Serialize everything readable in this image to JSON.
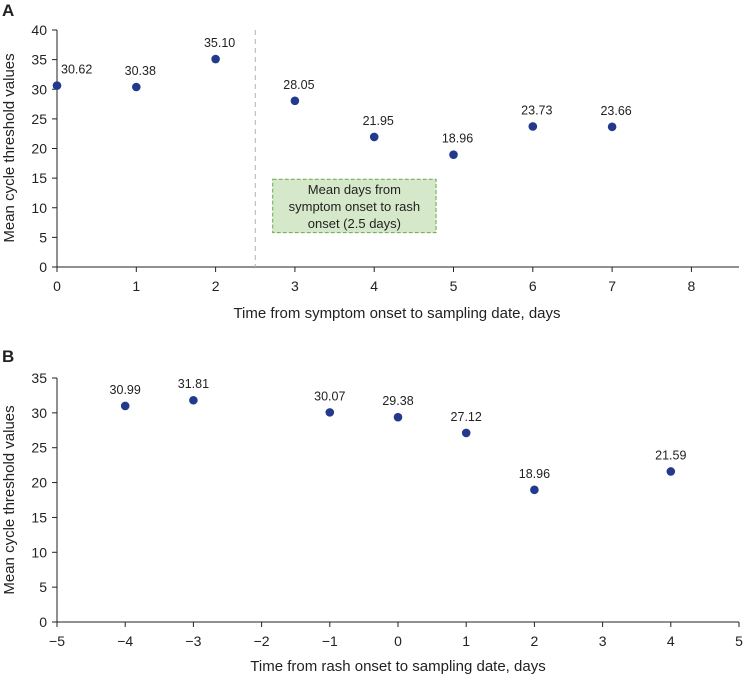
{
  "colors": {
    "marker": "#233a8c",
    "axis": "#222222",
    "divider": "#b0b0b0",
    "annotation_fill": "#d5e8c9",
    "annotation_border": "#6aa84f"
  },
  "chart_data": [
    {
      "type": "scatter",
      "panel_letter": "A",
      "xlabel": "Time from symptom onset to sampling date, days",
      "ylabel": "Mean cycle threshold values",
      "xlim": [
        0,
        8.6
      ],
      "ylim": [
        0,
        40
      ],
      "xticks": [
        0,
        1,
        2,
        3,
        4,
        5,
        6,
        7,
        8
      ],
      "xtick_labels": [
        "0",
        "1",
        "2",
        "3",
        "4",
        "5",
        "6",
        "7",
        "8"
      ],
      "yticks": [
        0,
        5,
        10,
        15,
        20,
        25,
        30,
        35,
        40
      ],
      "ytick_labels": [
        "0",
        "5",
        "10",
        "15",
        "20",
        "25",
        "30",
        "35",
        "40"
      ],
      "x": [
        0,
        1,
        2,
        3,
        4,
        5,
        6,
        7
      ],
      "y": [
        30.62,
        30.38,
        35.1,
        28.05,
        21.95,
        18.96,
        23.73,
        23.66
      ],
      "labels": [
        "30.62",
        "30.38",
        "35.10",
        "28.05",
        "21.95",
        "18.96",
        "23.73",
        "23.66"
      ],
      "vline_x": 2.5,
      "annotation": {
        "lines": [
          "Mean days from",
          "symptom onset to rash",
          "onset (2.5 days)"
        ],
        "x_range": [
          2.72,
          4.78
        ],
        "y_range": [
          5.8,
          14.8
        ]
      }
    },
    {
      "type": "scatter",
      "panel_letter": "B",
      "xlabel": "Time from rash onset to sampling date, days",
      "ylabel": "Mean cycle threshold values",
      "xlim": [
        -5,
        5
      ],
      "ylim": [
        0,
        35
      ],
      "xticks": [
        -5,
        -4,
        -3,
        -2,
        -1,
        0,
        1,
        2,
        3,
        4,
        5
      ],
      "xtick_labels": [
        "−5",
        "−4",
        "−3",
        "−2",
        "−1",
        "0",
        "1",
        "2",
        "3",
        "4",
        "5"
      ],
      "yticks": [
        0,
        5,
        10,
        15,
        20,
        25,
        30,
        35
      ],
      "ytick_labels": [
        "0",
        "5",
        "10",
        "15",
        "20",
        "25",
        "30",
        "35"
      ],
      "x": [
        -4,
        -3,
        -1,
        0,
        1,
        2,
        4
      ],
      "y": [
        30.99,
        31.81,
        30.07,
        29.38,
        27.12,
        18.96,
        21.59
      ],
      "labels": [
        "30.99",
        "31.81",
        "30.07",
        "29.38",
        "27.12",
        "18.96",
        "21.59"
      ]
    }
  ]
}
